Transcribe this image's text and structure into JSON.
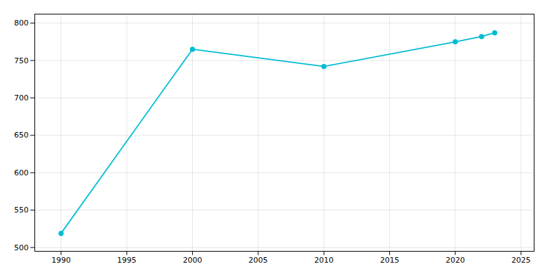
{
  "chart_data": {
    "type": "line",
    "x": [
      1990,
      2000,
      2010,
      2020,
      2022,
      2023
    ],
    "values": [
      519,
      765,
      742,
      775,
      782,
      787
    ],
    "color": "#00bcd4",
    "marker": "circle",
    "xlim": [
      1988,
      2026
    ],
    "xticks": [
      1990,
      1995,
      2000,
      2005,
      2010,
      2015,
      2020,
      2025
    ],
    "ylim": [
      495,
      812
    ],
    "yticks": [
      500,
      550,
      600,
      650,
      700,
      750,
      800
    ],
    "grid": true
  }
}
